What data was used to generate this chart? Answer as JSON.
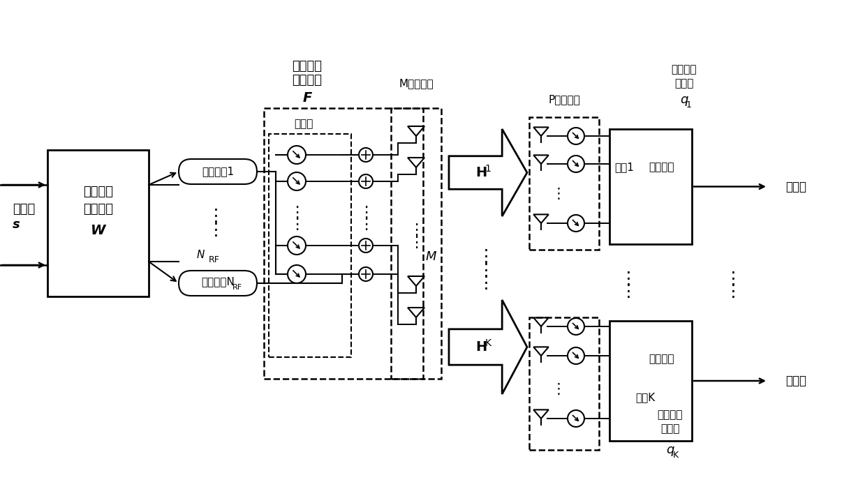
{
  "bg_color": "#ffffff",
  "text_color": "#000000",
  "line_color": "#000000",
  "fig_width": 12.39,
  "fig_height": 6.91,
  "labels": {
    "data_stream_left": "数据流\n",
    "data_stream_s": "s",
    "baseband_encoder_line1": "基带数字",
    "baseband_encoder_line2": "预编码器",
    "baseband_encoder_label": "W",
    "rf_chain1": "射频链路1",
    "rf_chain_nrf": "射频链路N",
    "rf_chain_nrf_sub": "RF",
    "nrf_label": "N",
    "nrf_sub": "RF",
    "phase_shifter": "移相器",
    "rf_analog_precoder_line1": "射频模拟",
    "rf_analog_precoder_line2": "预编码器",
    "F_label": "F",
    "M_antenna": "M天线阵列",
    "M_label": "M",
    "P_antenna": "P天线阵列",
    "H1_label": "H",
    "H1_sub": "1",
    "HK_label": "H",
    "HK_sub": "K",
    "rf_analog_combiner_top_line1": "射频模拟",
    "rf_analog_combiner_top_line2": "合并器",
    "q1_label": "q",
    "q1_sub": "1",
    "rf_chain_user1": "射频链路",
    "user1_label": "用户1",
    "rf_analog_combiner_bot_line1": "射频模拟",
    "rf_analog_combiner_bot_line2": "合并器",
    "qK_label": "q",
    "qK_sub": "K",
    "rf_chain_userK": "射频链路",
    "userK_label": "用户K",
    "data_stream_out": "数据流",
    "dots": "…",
    "vdots": "⋮"
  }
}
